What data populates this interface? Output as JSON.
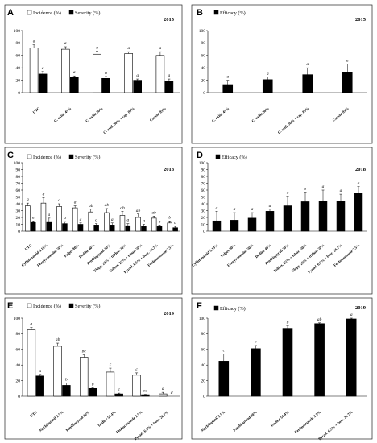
{
  "chart_data": [
    {
      "panel": "A",
      "type": "bar",
      "year": "2015",
      "ylim": [
        0,
        100
      ],
      "yticks": [
        0,
        20,
        40,
        60,
        80,
        100
      ],
      "categories": [
        "UTC",
        "C. oxide 45%",
        "C. oxide 30%",
        "C. oxid. 30% + cap. 85%",
        "Captan 85%"
      ],
      "series": [
        {
          "name": "Incidence (%)",
          "style": "white",
          "values": [
            72,
            70,
            62,
            63,
            60
          ],
          "errors": [
            5,
            4,
            5,
            3,
            6
          ],
          "labels": [
            "a",
            "a",
            "a",
            "a",
            "a"
          ]
        },
        {
          "name": "Severity (%)",
          "style": "black",
          "values": [
            30,
            25,
            23,
            20,
            19
          ],
          "errors": [
            4,
            2,
            3,
            2,
            3
          ],
          "labels": [
            "a",
            "a",
            "a",
            "a",
            "a"
          ]
        }
      ]
    },
    {
      "panel": "B",
      "type": "bar",
      "year": "2015",
      "ylim": [
        0,
        100
      ],
      "yticks": [
        0,
        20,
        40,
        60,
        80,
        100
      ],
      "categories": [
        "C. oxide 45%",
        "C. oxide 30%",
        "C. oxid. 30% + cap. 85%",
        "Captan 85%"
      ],
      "series": [
        {
          "name": "Efficacy (%)",
          "style": "black",
          "values": [
            13,
            21,
            29,
            33
          ],
          "errors": [
            7,
            4,
            11,
            13
          ],
          "labels": [
            "a",
            "a",
            "a",
            "a"
          ]
        }
      ]
    },
    {
      "panel": "C",
      "type": "bar",
      "year": "2018",
      "ylim": [
        0,
        100
      ],
      "yticks": [
        0,
        10,
        20,
        30,
        40,
        50,
        60,
        70,
        80,
        90,
        100
      ],
      "categories": [
        "UTC",
        "Cyflufenamid 5.13%",
        "Fenpyrazamine 50%",
        "Folpet 80%",
        "Dodine 40%",
        "Penthiopyrad 20%",
        "Flupy. 20% + triflox. 20%",
        "Triflox. 25% + tebuc. 50%",
        "Pyrael. 6.5% + bosc. 26.7%",
        "Fenbuconazole 2.5%"
      ],
      "series": [
        {
          "name": "Incidence (%)",
          "style": "white",
          "values": [
            37,
            41,
            36,
            34,
            28,
            27,
            23,
            20,
            19,
            12
          ],
          "errors": [
            4,
            8,
            4,
            3,
            4,
            6,
            6,
            5,
            3,
            3
          ],
          "labels": [
            "a",
            "a",
            "a",
            "a",
            "ab",
            "ab",
            "ab",
            "ab",
            "ab",
            "b"
          ]
        },
        {
          "name": "Severity (%)",
          "style": "black",
          "values": [
            13,
            14,
            11,
            10,
            9,
            9,
            8,
            7,
            7,
            5
          ],
          "errors": [
            2,
            5,
            3,
            2,
            2,
            3,
            3,
            3,
            2,
            2
          ],
          "labels": [
            "a",
            "a",
            "a",
            "a",
            "a",
            "a",
            "a",
            "a",
            "a",
            "a"
          ]
        }
      ]
    },
    {
      "panel": "D",
      "type": "bar",
      "year": "2018",
      "ylim": [
        0,
        100
      ],
      "yticks": [
        0,
        10,
        20,
        30,
        40,
        50,
        60,
        70,
        80,
        90,
        100
      ],
      "categories": [
        "Cyflufenamid 5.13%",
        "Folpet 80%",
        "Fenpyrazamine 50%",
        "Dodine 40%",
        "Penthiopyrad 20%",
        "Triflox. 25% + tebuc. 50%",
        "Flupy. 20% + triflox. 20%",
        "Pyrael. 6.5% + bosc. 26.7%",
        "Fenbuconazole 2.5%"
      ],
      "series": [
        {
          "name": "Efficacy (%)",
          "style": "black",
          "values": [
            15,
            16,
            19,
            29,
            37,
            43,
            44,
            44,
            55
          ],
          "errors": [
            14,
            11,
            8,
            3,
            14,
            14,
            16,
            10,
            10
          ],
          "labels": [
            "a",
            "a",
            "a",
            "a",
            "a",
            "a",
            "a",
            "a",
            "a"
          ]
        }
      ]
    },
    {
      "panel": "E",
      "type": "bar",
      "year": "2019",
      "ylim": [
        0,
        100
      ],
      "yticks": [
        0,
        20,
        40,
        60,
        80,
        100
      ],
      "categories": [
        "UTC",
        "Myclobutanil 2.5%",
        "Penthiopyrad 20%",
        "Dodine 54.4%",
        "Fenbuconazole 2.5%",
        "Pyrael. 6.5% + bosc. 26.7%"
      ],
      "series": [
        {
          "name": "Incidence (%)",
          "style": "white",
          "values": [
            85,
            64,
            50,
            31,
            27,
            3
          ],
          "errors": [
            3,
            4,
            3,
            5,
            3,
            2
          ],
          "labels": [
            "a",
            "ab",
            "bc",
            "c",
            "c",
            "d"
          ]
        },
        {
          "name": "Severity (%)",
          "style": "black",
          "values": [
            26,
            14,
            10,
            3,
            2,
            0
          ],
          "errors": [
            2,
            3,
            1,
            1,
            0.5,
            0
          ],
          "labels": [
            "a",
            "b",
            "b",
            "c",
            "cd",
            "d"
          ]
        }
      ]
    },
    {
      "panel": "F",
      "type": "bar",
      "year": "2019",
      "ylim": [
        0,
        100
      ],
      "yticks": [
        0,
        20,
        40,
        60,
        80,
        100
      ],
      "categories": [
        "Myclobutanil 2.5%",
        "Penthiopyrad 20%",
        "Dodine 54.4%",
        "Fenbuconazole 2.5%",
        "Pyrael. 6.5% + bosc. 26.7%"
      ],
      "series": [
        {
          "name": "Efficacy (%)",
          "style": "black",
          "values": [
            45,
            61,
            87,
            93,
            99
          ],
          "errors": [
            9,
            4,
            3,
            1,
            1
          ],
          "labels": [
            "c",
            "c",
            "b",
            "ab",
            "a"
          ]
        }
      ]
    }
  ]
}
